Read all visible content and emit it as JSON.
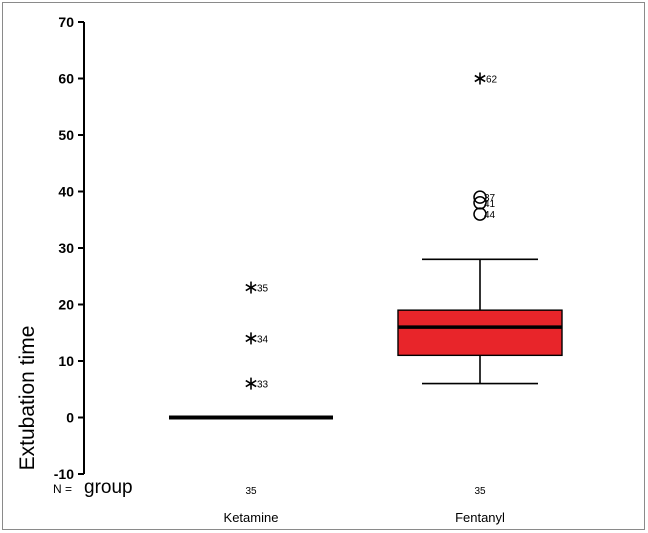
{
  "chart_data": {
    "type": "box",
    "ylabel": "Extubation time",
    "ylim": [
      -10,
      70
    ],
    "yticks": [
      -10,
      0,
      10,
      20,
      30,
      40,
      50,
      60,
      70
    ],
    "n_label_prefix": "N =",
    "xlabel": "group",
    "fill_color": "#e8252a",
    "groups": [
      {
        "name": "Ketamine",
        "n": "35",
        "min": 0,
        "q1": 0,
        "median": 0,
        "q3": 0,
        "max": 0,
        "outliers": [],
        "extremes": [
          {
            "value": 6,
            "label": "33"
          },
          {
            "value": 14,
            "label": "34"
          },
          {
            "value": 23,
            "label": "35"
          }
        ]
      },
      {
        "name": "Fentanyl",
        "n": "35",
        "min": 6,
        "q1": 11,
        "median": 16,
        "q3": 19,
        "max": 28,
        "outliers": [
          {
            "value": 36,
            "label": "44"
          },
          {
            "value": 38,
            "label": "41"
          },
          {
            "value": 39,
            "label": "37"
          }
        ],
        "extremes": [
          {
            "value": 60,
            "label": "62"
          }
        ]
      }
    ]
  }
}
